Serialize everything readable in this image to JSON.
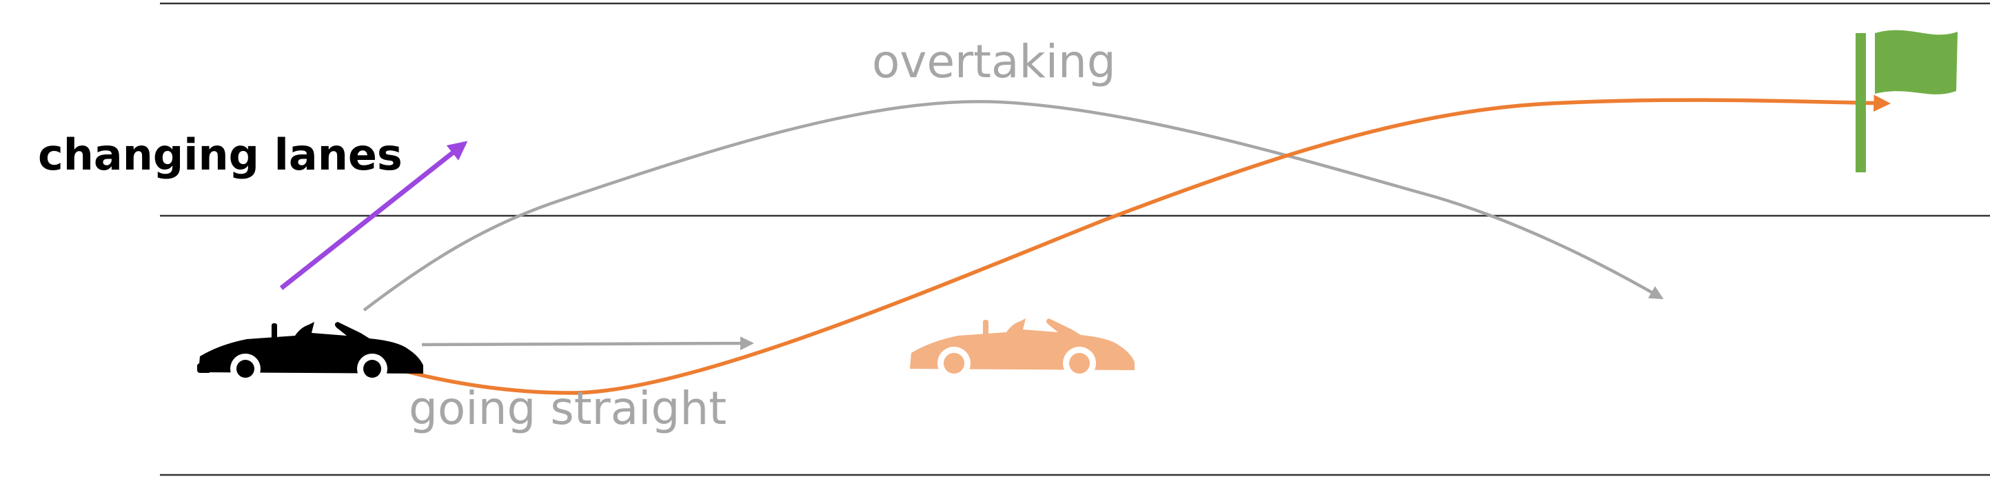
{
  "labels": {
    "changing_lanes": "changing lanes",
    "overtaking": "overtaking",
    "going_straight": "going straight"
  },
  "colors": {
    "lane_line": "#333333",
    "orange_path": "#ED7D31",
    "gray_path": "#A6A6A6",
    "purple_arrow": "#9B47E0",
    "ego_car": "#000000",
    "other_car": "#F4B183",
    "flag": "#70AD47",
    "label_dark": "#000000",
    "label_gray": "#A6A6A6"
  },
  "icons": {
    "ego_vehicle": "convertible-car-icon",
    "other_vehicle": "convertible-car-icon",
    "goal": "flag-icon"
  }
}
